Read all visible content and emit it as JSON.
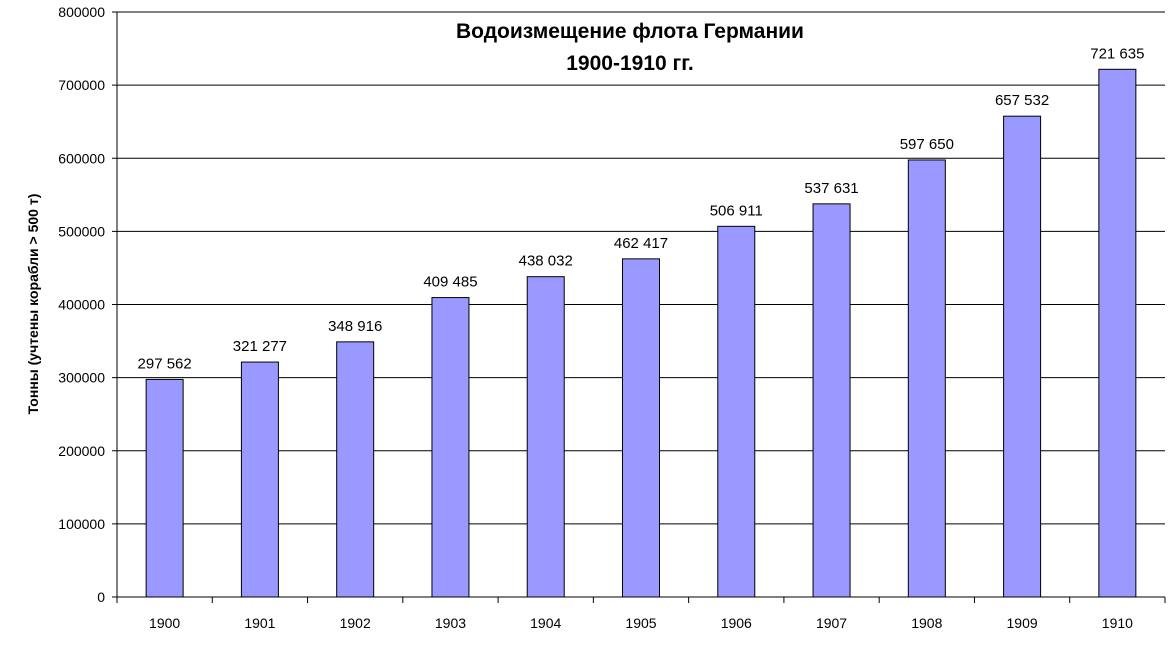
{
  "chart_data": {
    "type": "bar",
    "title": "Водоизмещение флота Германии",
    "subtitle": "1900-1910 гг.",
    "xlabel": "",
    "ylabel": "Тонны (учтены корабли > 500 т)",
    "categories": [
      "1900",
      "1901",
      "1902",
      "1903",
      "1904",
      "1905",
      "1906",
      "1907",
      "1908",
      "1909",
      "1910"
    ],
    "values": [
      297562,
      321277,
      348916,
      409485,
      438032,
      462417,
      506911,
      537631,
      597650,
      657532,
      721635
    ],
    "value_labels": [
      "297 562",
      "321 277",
      "348 916",
      "409 485",
      "438 032",
      "462 417",
      "506 911",
      "537 631",
      "597 650",
      "657 532",
      "721 635"
    ],
    "ylim": [
      0,
      800000
    ],
    "yticks": [
      0,
      100000,
      200000,
      300000,
      400000,
      500000,
      600000,
      700000,
      800000
    ],
    "ytick_labels": [
      "0",
      "100000",
      "200000",
      "300000",
      "400000",
      "500000",
      "600000",
      "700000",
      "800000"
    ],
    "grid": true,
    "legend": "none",
    "bar_color": "#9999ff",
    "bar_edge_color": "#000000",
    "grid_color": "#000000"
  }
}
